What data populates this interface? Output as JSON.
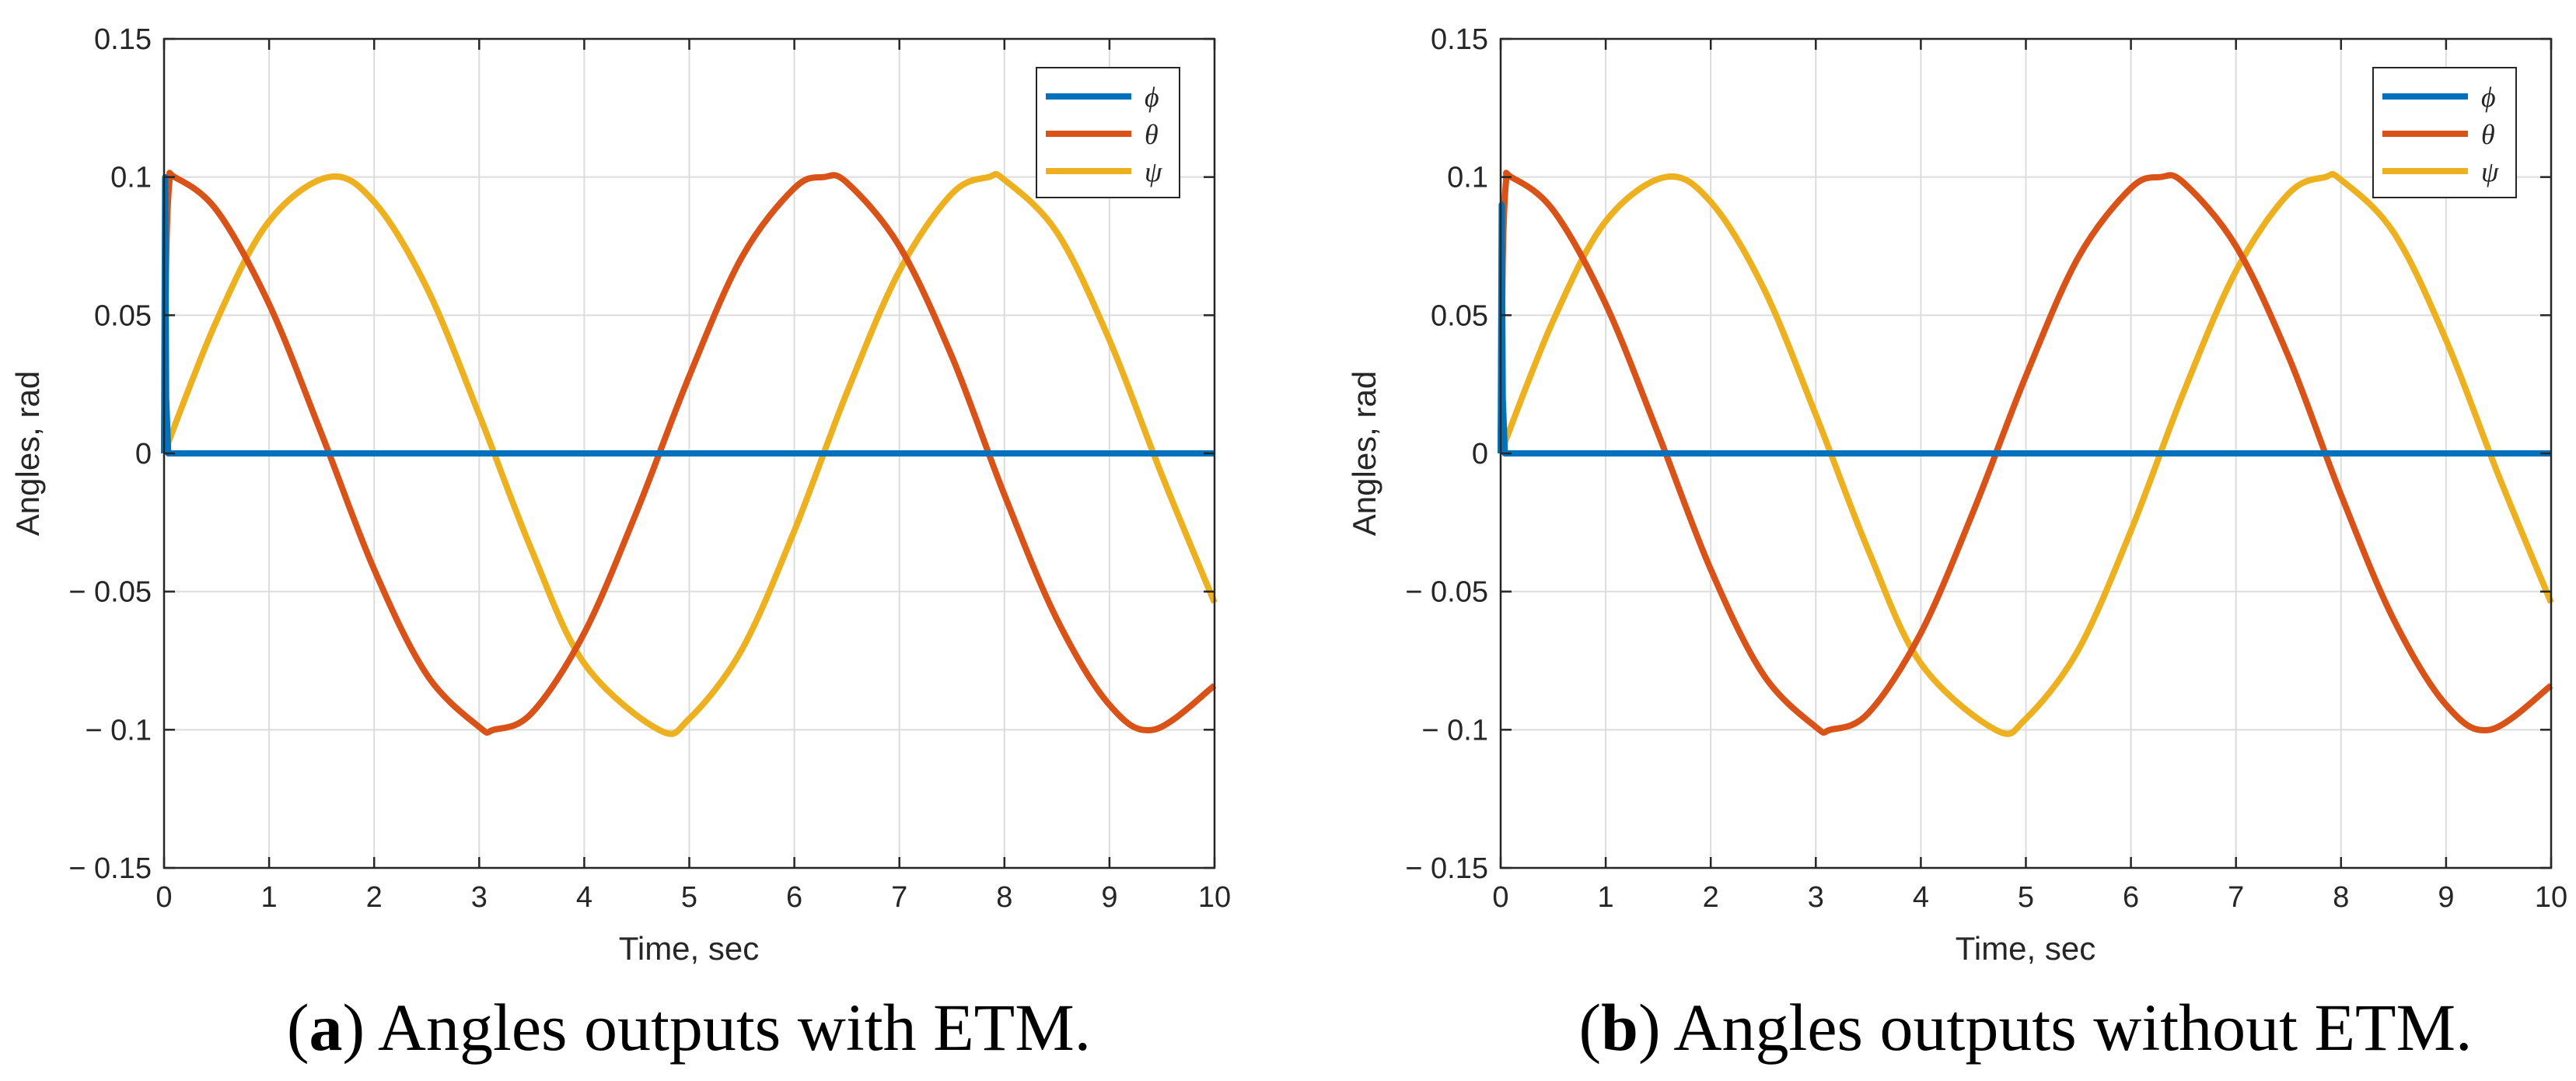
{
  "chart_data": [
    {
      "type": "line",
      "panel_label": "a",
      "caption": "Angles outputs with ETM.",
      "xlabel": "Time, sec",
      "ylabel": "Angles, rad",
      "xlim": [
        0,
        10
      ],
      "ylim": [
        -0.15,
        0.15
      ],
      "xticks": [
        0,
        1,
        2,
        3,
        4,
        5,
        6,
        7,
        8,
        9,
        10
      ],
      "yticks": [
        0.15,
        0.1,
        0.05,
        0,
        -0.05,
        -0.1,
        -0.15
      ],
      "xtick_labels": [
        "0",
        "1",
        "2",
        "3",
        "4",
        "5",
        "6",
        "7",
        "8",
        "9",
        "10"
      ],
      "ytick_labels": [
        "0.15",
        "0.1",
        "0.05",
        "0",
        "− 0.05",
        "− 0.1",
        "− 0.15"
      ],
      "grid": true,
      "legend_position": "top-right",
      "series": [
        {
          "name": "ϕ",
          "color": "#0072BD",
          "x": [
            0,
            0.01,
            0.02,
            0.04,
            0.06,
            0.1,
            0.5,
            1,
            2,
            3,
            4,
            5,
            6,
            7,
            8,
            9,
            10
          ],
          "values": [
            0,
            0.1,
            0.02,
            0,
            0,
            0,
            0,
            0,
            0,
            0,
            0,
            0,
            0,
            0,
            0,
            0,
            0
          ]
        },
        {
          "name": "θ",
          "color": "#D95319",
          "x": [
            0,
            0.02,
            0.05,
            0.1,
            0.5,
            1,
            1.5,
            2,
            2.5,
            3,
            3.14,
            3.5,
            4,
            4.5,
            5,
            5.5,
            6,
            6.28,
            6.5,
            7,
            7.5,
            8,
            8.5,
            9,
            9.42,
            10
          ],
          "values": [
            0,
            0.07,
            0.098,
            0.1,
            0.088,
            0.054,
            0.007,
            -0.042,
            -0.08,
            -0.099,
            -0.1,
            -0.094,
            -0.065,
            -0.021,
            0.028,
            0.071,
            0.096,
            0.1,
            0.098,
            0.075,
            0.035,
            -0.015,
            -0.06,
            -0.091,
            -0.1,
            -0.084
          ]
        },
        {
          "name": "ψ",
          "color": "#EDB120",
          "x": [
            0,
            0.5,
            1,
            1.57,
            2,
            2.5,
            3,
            3.5,
            4,
            4.71,
            5,
            5.5,
            6,
            6.5,
            7,
            7.5,
            7.85,
            8,
            8.5,
            9,
            9.5,
            10
          ],
          "values": [
            0,
            0.048,
            0.084,
            0.1,
            0.091,
            0.06,
            0.014,
            -0.035,
            -0.076,
            -0.1,
            -0.096,
            -0.071,
            -0.028,
            0.022,
            0.066,
            0.094,
            0.1,
            0.099,
            0.08,
            0.041,
            -0.008,
            -0.054
          ]
        }
      ]
    },
    {
      "type": "line",
      "panel_label": "b",
      "caption": "Angles outputs without ETM.",
      "xlabel": "Time, sec",
      "ylabel": "Angles, rad",
      "xlim": [
        0,
        10
      ],
      "ylim": [
        -0.15,
        0.15
      ],
      "xticks": [
        0,
        1,
        2,
        3,
        4,
        5,
        6,
        7,
        8,
        9,
        10
      ],
      "yticks": [
        0.15,
        0.1,
        0.05,
        0,
        -0.05,
        -0.1,
        -0.15
      ],
      "xtick_labels": [
        "0",
        "1",
        "2",
        "3",
        "4",
        "5",
        "6",
        "7",
        "8",
        "9",
        "10"
      ],
      "ytick_labels": [
        "0.15",
        "0.1",
        "0.05",
        "0",
        "− 0.05",
        "− 0.1",
        "− 0.15"
      ],
      "grid": true,
      "legend_position": "top-right",
      "series": [
        {
          "name": "ϕ",
          "color": "#0072BD",
          "x": [
            0,
            0.01,
            0.02,
            0.04,
            0.06,
            0.1,
            0.5,
            1,
            2,
            3,
            4,
            5,
            6,
            7,
            8,
            9,
            10
          ],
          "values": [
            0,
            0.09,
            0.02,
            0,
            0,
            0,
            0,
            0,
            0,
            0,
            0,
            0,
            0,
            0,
            0,
            0,
            0
          ]
        },
        {
          "name": "θ",
          "color": "#D95319",
          "x": [
            0,
            0.02,
            0.05,
            0.1,
            0.5,
            1,
            1.5,
            2,
            2.5,
            3,
            3.14,
            3.5,
            4,
            4.5,
            5,
            5.5,
            6,
            6.28,
            6.5,
            7,
            7.5,
            8,
            8.5,
            9,
            9.42,
            10
          ],
          "values": [
            0,
            0.07,
            0.098,
            0.1,
            0.088,
            0.054,
            0.007,
            -0.042,
            -0.08,
            -0.099,
            -0.1,
            -0.094,
            -0.065,
            -0.021,
            0.028,
            0.071,
            0.096,
            0.1,
            0.098,
            0.075,
            0.035,
            -0.015,
            -0.06,
            -0.091,
            -0.1,
            -0.084
          ]
        },
        {
          "name": "ψ",
          "color": "#EDB120",
          "x": [
            0,
            0.5,
            1,
            1.57,
            2,
            2.5,
            3,
            3.5,
            4,
            4.71,
            5,
            5.5,
            6,
            6.5,
            7,
            7.5,
            7.85,
            8,
            8.5,
            9,
            9.5,
            10
          ],
          "values": [
            0,
            0.048,
            0.084,
            0.1,
            0.091,
            0.06,
            0.014,
            -0.035,
            -0.076,
            -0.1,
            -0.096,
            -0.071,
            -0.028,
            0.022,
            0.066,
            0.094,
            0.1,
            0.099,
            0.08,
            0.041,
            -0.008,
            -0.054
          ]
        }
      ]
    }
  ],
  "captions": [
    {
      "label": "a",
      "text": ") Angles outputs with ETM."
    },
    {
      "label": "b",
      "text": ") Angles outputs without ETM."
    }
  ]
}
